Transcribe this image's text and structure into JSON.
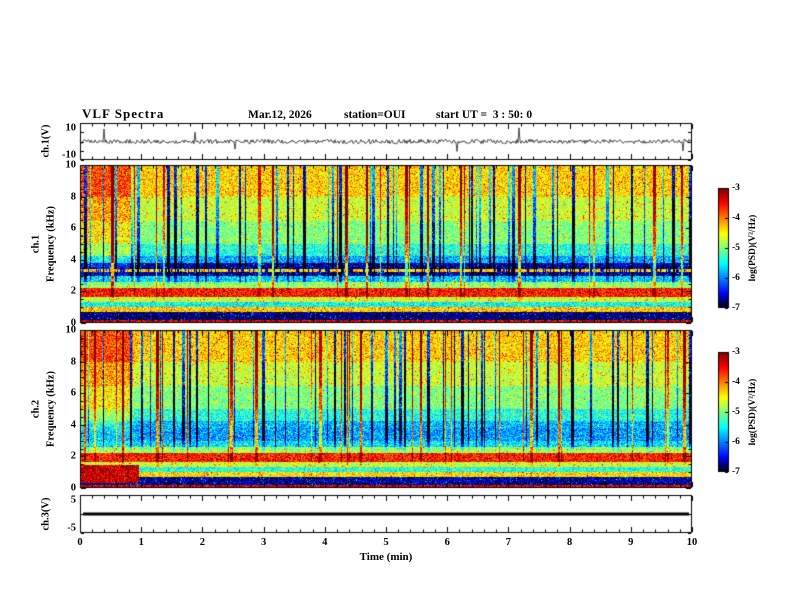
{
  "header": {
    "title": "VLF Spectra",
    "date": "Mar.12, 2026",
    "station": "station=OUI",
    "start_ut": "start UT =  3 : 50: 0"
  },
  "x_axis": {
    "label": "Time (min)",
    "min": 0,
    "max": 10,
    "ticks": [
      "0",
      "1",
      "2",
      "3",
      "4",
      "5",
      "6",
      "7",
      "8",
      "9",
      "10"
    ]
  },
  "panels": {
    "ch1_wave": {
      "ylabel": "ch.1(V)",
      "ymin": -10,
      "ymax": 10,
      "yticks": [
        "10",
        "-10"
      ]
    },
    "ch1_spec": {
      "ylabel_channel": "ch.1",
      "ylabel_axis": "Frequency (kHz)",
      "ymin": 0,
      "ymax": 10,
      "yticks": [
        "10",
        "8",
        "6",
        "4",
        "2",
        "0"
      ]
    },
    "ch2_spec": {
      "ylabel_channel": "ch.2",
      "ylabel_axis": "Frequency (kHz)",
      "ymin": 0,
      "ymax": 10,
      "yticks": [
        "10",
        "8",
        "6",
        "4",
        "2",
        "0"
      ]
    },
    "ch3_wave": {
      "ylabel": "ch.3(V)",
      "ymin": -5,
      "ymax": 5,
      "yticks": [
        "5",
        "-5"
      ]
    }
  },
  "colorbar": {
    "label": "log(PSD)(V²/Hz)",
    "vmin": -7,
    "vmax": -3,
    "ticks": [
      "-3",
      "-4",
      "-5",
      "-6",
      "-7"
    ]
  },
  "chart_data": [
    {
      "type": "line",
      "panel": "ch1_waveform",
      "ylabel": "ch.1(V)",
      "ylim": [
        -10,
        10
      ],
      "xlim": [
        0,
        10
      ],
      "description": "broadband noise waveform centered on 0 V, typical amplitude within about ±2 V, with sporadic impulsive spikes reaching roughly ±8 V throughout the 10 minutes"
    },
    {
      "type": "heatmap",
      "panel": "ch1_spectrogram",
      "xlabel": "Time (min)",
      "ylabel": "Frequency (kHz)",
      "xlim": [
        0,
        10
      ],
      "ylim": [
        0,
        10
      ],
      "colorbar_label": "log(PSD)(V²/Hz)",
      "colorbar_range": [
        -7,
        -3
      ],
      "frequency_profile": [
        [
          0.25,
          -3.4
        ],
        [
          0.7,
          -6.8
        ],
        [
          1.05,
          -4.3
        ],
        [
          1.35,
          -5.5
        ],
        [
          1.7,
          -4.7
        ],
        [
          2.25,
          -3.6
        ],
        [
          2.6,
          -4.9
        ],
        [
          3.0,
          -5.7
        ],
        [
          3.8,
          -6.7
        ],
        [
          4.3,
          -5.9
        ],
        [
          5.0,
          -5.4
        ],
        [
          6.5,
          -5.0
        ],
        [
          8.0,
          -4.7
        ],
        [
          10.0,
          -4.35
        ]
      ],
      "bright_line_khz": 3.35,
      "left_enhancement": {
        "time_min": [
          0,
          0.85
        ],
        "freq_above_khz": 2.6,
        "boost": 0.55
      },
      "features": [
        "green/yellow speckled background 5-10 kHz (~-4.5 log PSD)",
        "dense narrow vertical streaks over full band: dark blue (low power) and red/orange (impulsive sferics)",
        "bright red/yellow horizontal band near 2 kHz (~-3.6)",
        "very dark (black) horizontal band 3.0-3.8 kHz with thin intermittent orange line inside",
        "red band at the lowest frequencies (<0.25 kHz) and black band 0.3-0.7 kHz",
        "overall enhanced (yellow-green) levels during the first ~0.8 min"
      ]
    },
    {
      "type": "heatmap",
      "panel": "ch2_spectrogram",
      "xlabel": "Time (min)",
      "ylabel": "Frequency (kHz)",
      "xlim": [
        0,
        10
      ],
      "ylim": [
        0,
        10
      ],
      "colorbar_label": "log(PSD)(V²/Hz)",
      "colorbar_range": [
        -7,
        -3
      ],
      "frequency_profile": [
        [
          0.25,
          -3.4
        ],
        [
          0.7,
          -6.7
        ],
        [
          1.05,
          -4.4
        ],
        [
          1.35,
          -5.4
        ],
        [
          1.7,
          -4.7
        ],
        [
          2.25,
          -3.6
        ],
        [
          2.6,
          -4.9
        ],
        [
          3.0,
          -5.6
        ],
        [
          3.8,
          -5.9
        ],
        [
          4.3,
          -5.8
        ],
        [
          5.0,
          -5.4
        ],
        [
          6.5,
          -5.0
        ],
        [
          8.0,
          -4.7
        ],
        [
          10.0,
          -4.35
        ]
      ],
      "hot_patch": {
        "time_min": [
          0,
          0.95
        ],
        "freq_khz": [
          0.35,
          1.5
        ],
        "level": -3.3
      },
      "left_enhancement": {
        "time_min": [
          0,
          0.85
        ],
        "freq_above_khz": 2.6,
        "boost": 0.55
      },
      "features": [
        "similar speckled green/cyan background with vertical dark and bright streaks",
        "strong red/orange patch 0.4-1.5 kHz during the first ~0.9 min",
        "bright band near 2 kHz, blue 2.6-4.5 kHz, no black 3-4 kHz band unlike ch.1"
      ]
    },
    {
      "type": "line",
      "panel": "ch3_level",
      "ylabel": "ch.3(V)",
      "ylim": [
        -5,
        5
      ],
      "xlim": [
        0,
        10
      ],
      "values_constant": 0,
      "description": "thick flat line at 0 V across the full 10 minutes (no signal on channel 3)"
    }
  ]
}
